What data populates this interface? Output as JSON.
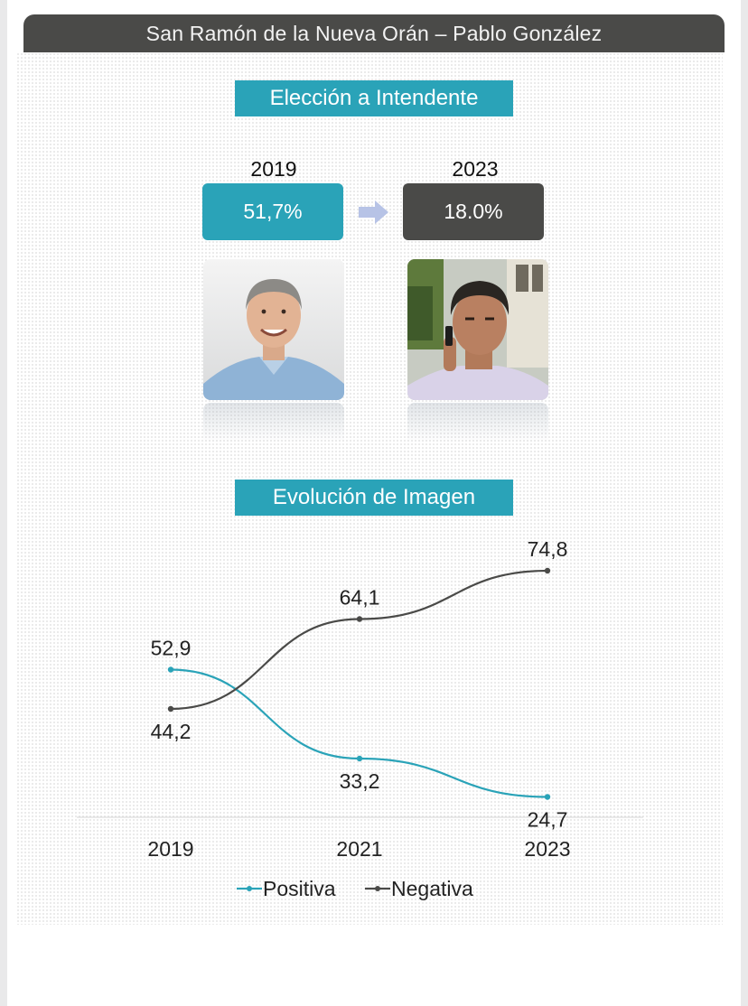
{
  "header": {
    "title": "San Ramón de la Nueva Orán – Pablo González"
  },
  "election": {
    "heading": "Elección a Intendente",
    "years": [
      "2019",
      "2023"
    ],
    "results": [
      "51,7%",
      "18.0%"
    ],
    "colors": {
      "accent": "#2aa3b8",
      "dark": "#4a4a48",
      "arrow": "#b7c3e6"
    }
  },
  "image_section": {
    "heading": "Evolución de Imagen"
  },
  "chart_data": {
    "type": "line",
    "title": "Evolución de Imagen",
    "x": [
      "2019",
      "2021",
      "2023"
    ],
    "series": [
      {
        "name": "Positiva",
        "values": [
          52.9,
          33.2,
          24.7
        ],
        "labels": [
          "52,9",
          "33,2",
          "24,7"
        ],
        "color": "#2aa3b8"
      },
      {
        "name": "Negativa",
        "values": [
          44.2,
          64.1,
          74.8
        ],
        "labels": [
          "44,2",
          "64,1",
          "74,8"
        ],
        "color": "#4a4a48"
      }
    ],
    "ylim": [
      0,
      100
    ],
    "grid": false,
    "legend": "bottom"
  }
}
